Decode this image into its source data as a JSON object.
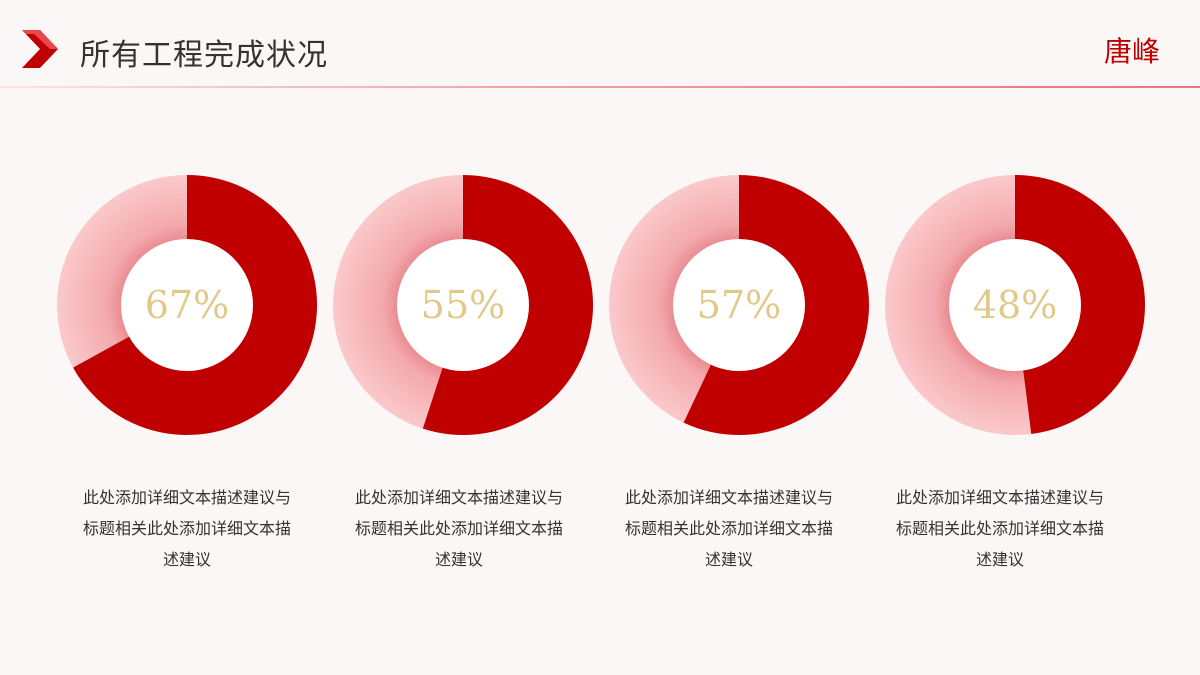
{
  "header": {
    "title": "所有工程完成状况",
    "author": "唐峰"
  },
  "colors": {
    "accent": "#c00000",
    "ring_light": "#f7b8bb",
    "label": "#e2c98a"
  },
  "chart_data": {
    "type": "pie",
    "variant": "donut",
    "items": [
      {
        "value": 67,
        "label": "67%",
        "caption": "此处添加详细文本描述建议与标题相关此处添加详细文本描述建议"
      },
      {
        "value": 55,
        "label": "55%",
        "caption": "此处添加详细文本描述建议与标题相关此处添加详细文本描述建议"
      },
      {
        "value": 57,
        "label": "57%",
        "caption": "此处添加详细文本描述建议与标题相关此处添加详细文本描述建议"
      },
      {
        "value": 48,
        "label": "48%",
        "caption": "此处添加详细文本描述建议与标题相关此处添加详细文本描述建议"
      }
    ]
  }
}
